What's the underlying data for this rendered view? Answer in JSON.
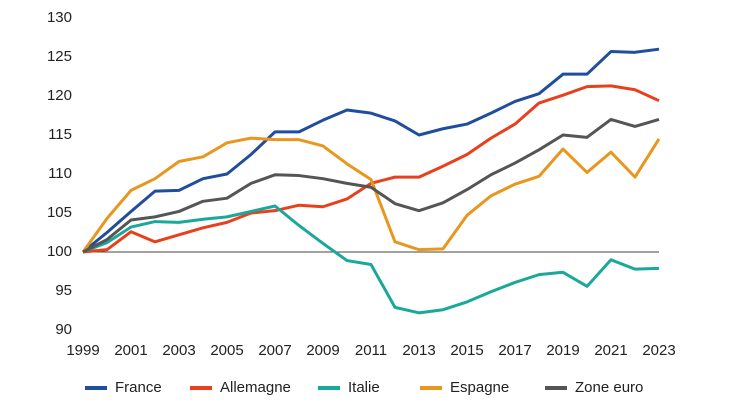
{
  "chart_data": {
    "type": "line",
    "x": [
      1999,
      2000,
      2001,
      2002,
      2003,
      2004,
      2005,
      2006,
      2007,
      2008,
      2009,
      2010,
      2011,
      2012,
      2013,
      2014,
      2015,
      2016,
      2017,
      2018,
      2019,
      2020,
      2021,
      2022,
      2023
    ],
    "series": [
      {
        "name": "France",
        "color": "#1f4e9c",
        "values": [
          100,
          102.5,
          105.2,
          107.8,
          107.9,
          109.4,
          110,
          112.5,
          115.4,
          115.4,
          116.9,
          118.2,
          117.8,
          116.8,
          115,
          115.8,
          116.4,
          117.8,
          119.3,
          120.3,
          122.8,
          122.8,
          125.7,
          125.6,
          126
        ]
      },
      {
        "name": "Allemagne",
        "color": "#e8401c",
        "values": [
          100,
          100.3,
          102.6,
          101.3,
          102.2,
          103.1,
          103.8,
          105,
          105.3,
          106,
          105.8,
          106.8,
          108.8,
          109.6,
          109.6,
          111,
          112.5,
          114.6,
          116.4,
          119.1,
          120.1,
          121.2,
          121.3,
          120.8,
          119.4
        ]
      },
      {
        "name": "Italie",
        "color": "#1aa89a",
        "values": [
          100,
          101.2,
          103.2,
          103.9,
          103.8,
          104.2,
          104.5,
          105.2,
          105.9,
          103.4,
          101.1,
          98.9,
          98.4,
          92.9,
          92.2,
          92.6,
          93.6,
          94.9,
          96.1,
          97.1,
          97.4,
          95.6,
          99,
          97.8,
          97.9
        ]
      },
      {
        "name": "Espagne",
        "color": "#e8961e",
        "values": [
          100,
          104.3,
          107.9,
          109.4,
          111.6,
          112.2,
          114,
          114.6,
          114.4,
          114.4,
          113.6,
          111.3,
          109.3,
          101.3,
          100.3,
          100.4,
          104.7,
          107.2,
          108.7,
          109.7,
          113.2,
          110.2,
          112.8,
          109.6,
          114.5
        ]
      },
      {
        "name": "Zone euro",
        "color": "#555555",
        "values": [
          100,
          101.6,
          104.1,
          104.5,
          105.2,
          106.5,
          106.9,
          108.8,
          109.9,
          109.8,
          109.4,
          108.8,
          108.3,
          106.2,
          105.3,
          106.3,
          108,
          109.9,
          111.4,
          113.1,
          115,
          114.7,
          117,
          116.1,
          117
        ]
      }
    ],
    "xlim": [
      1999,
      2023
    ],
    "xticks": [
      1999,
      2001,
      2003,
      2005,
      2007,
      2009,
      2011,
      2013,
      2015,
      2017,
      2019,
      2021,
      2023
    ],
    "ylim": [
      90,
      130
    ],
    "yticks": [
      90,
      95,
      100,
      105,
      110,
      115,
      120,
      125,
      130
    ],
    "reference_line": 100,
    "legend": "bottom"
  }
}
